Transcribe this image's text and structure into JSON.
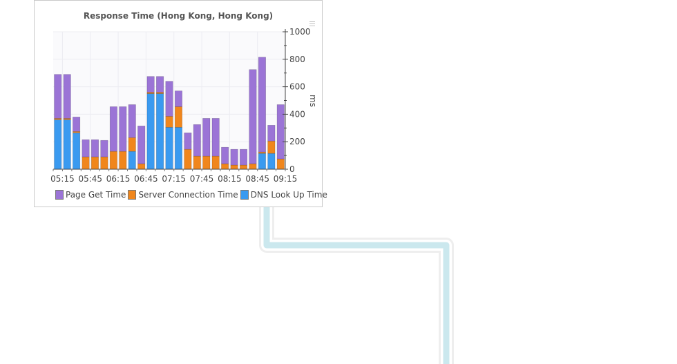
{
  "chart": {
    "title": "Response Time (Hong Kong, Hong Kong)",
    "y_unit": "ms"
  },
  "legend": [
    {
      "label": "Page Get Time",
      "color": "#9b74d6"
    },
    {
      "label": "Server Connection Time",
      "color": "#f0861c"
    },
    {
      "label": "DNS Look Up Time",
      "color": "#3a9af0"
    }
  ],
  "colors": {
    "page_get": "#9b74d6",
    "server_connection": "#f0861c",
    "dns_lookup": "#3a9af0",
    "connector_line": "#cbe8ee"
  },
  "chart_data": {
    "type": "bar",
    "stacked": true,
    "x_tick_labels": [
      "05:15",
      "05:45",
      "06:15",
      "06:45",
      "07:15",
      "07:45",
      "08:15",
      "08:45",
      "09:15"
    ],
    "ylim": [
      0,
      1000
    ],
    "y_ticks": [
      0,
      200,
      400,
      600,
      800,
      1000
    ],
    "y_axis_position": "right",
    "ylabel": "ms",
    "grid": true,
    "legend_position": "bottom",
    "series": [
      {
        "name": "DNS Look Up Time",
        "values": [
          360,
          360,
          265,
          0,
          0,
          0,
          0,
          0,
          130,
          0,
          550,
          550,
          305,
          305,
          0,
          0,
          0,
          0,
          0,
          0,
          0,
          0,
          115,
          115,
          0
        ]
      },
      {
        "name": "Server Connection Time",
        "values": [
          10,
          10,
          10,
          90,
          90,
          90,
          130,
          130,
          100,
          40,
          10,
          10,
          80,
          150,
          145,
          95,
          95,
          95,
          40,
          30,
          30,
          40,
          10,
          90,
          75
        ]
      },
      {
        "name": "Page Get Time",
        "values": [
          320,
          320,
          105,
          125,
          125,
          120,
          325,
          325,
          240,
          275,
          115,
          115,
          255,
          115,
          120,
          230,
          275,
          275,
          120,
          115,
          115,
          685,
          690,
          115,
          395
        ]
      }
    ]
  }
}
